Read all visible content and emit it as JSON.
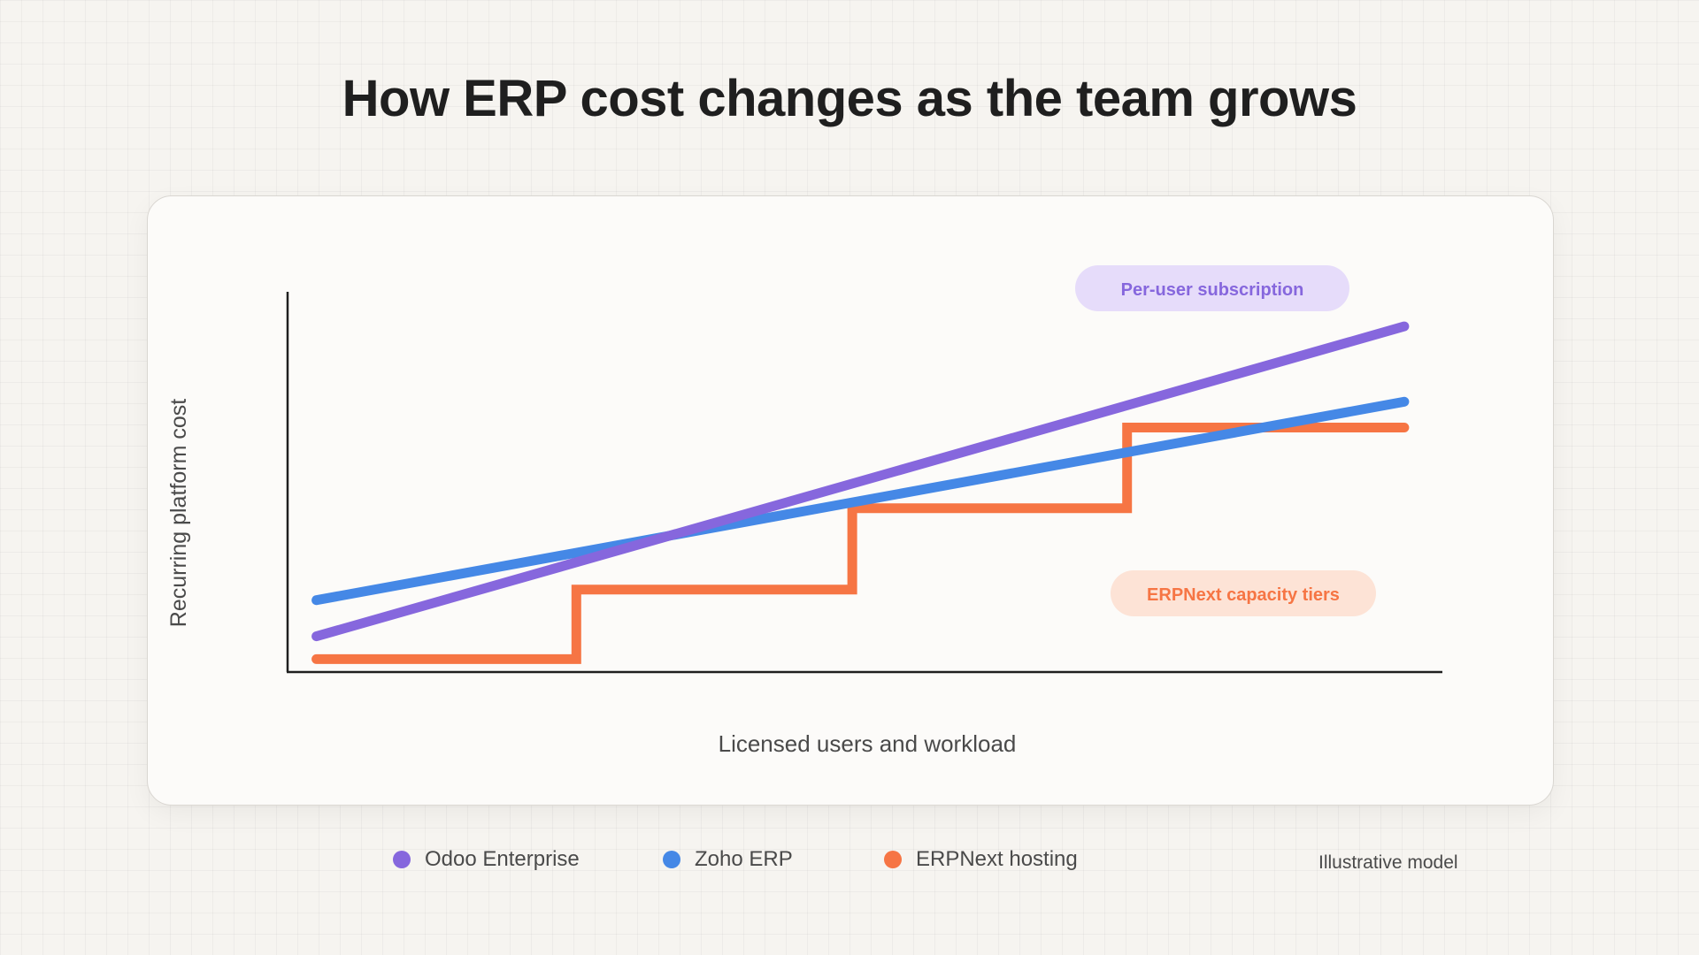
{
  "title": "How ERP cost changes as the team grows",
  "note": "Illustrative model",
  "colors": {
    "odoo": "#8667dd",
    "zoho": "#4588e6",
    "erpnext": "#f67544",
    "axis": "#1f1f1f",
    "subscription_pill_bg": "#e6dcfa",
    "capacity_pill_bg": "#fde3d6"
  },
  "chart_data": {
    "type": "line",
    "title": "How ERP cost changes as the team grows",
    "xlabel": "Licensed users and workload",
    "ylabel": "Recurring platform cost",
    "xlim": [
      0,
      100
    ],
    "ylim": [
      0,
      100
    ],
    "grid": false,
    "legend_position": "bottom",
    "note": "Illustrative model",
    "series": [
      {
        "name": "Odoo Enterprise",
        "key": "odoo",
        "step": false,
        "x": [
          2.5,
          96.7
        ],
        "y": [
          9.4,
          90.9
        ]
      },
      {
        "name": "Zoho ERP",
        "key": "zoho",
        "step": false,
        "x": [
          2.5,
          96.7
        ],
        "y": [
          18.9,
          71.1
        ]
      },
      {
        "name": "ERPNext hosting",
        "key": "erpnext",
        "step": true,
        "x": [
          2.5,
          25.0,
          25.0,
          48.9,
          48.9,
          72.7,
          72.7,
          96.7
        ],
        "y": [
          3.4,
          3.4,
          21.7,
          21.7,
          43.1,
          43.1,
          64.3,
          64.3
        ]
      }
    ],
    "annotations": [
      {
        "text": "Per-user subscription",
        "key": "subscription"
      },
      {
        "text": "ERPNext capacity tiers",
        "key": "capacity"
      }
    ]
  }
}
